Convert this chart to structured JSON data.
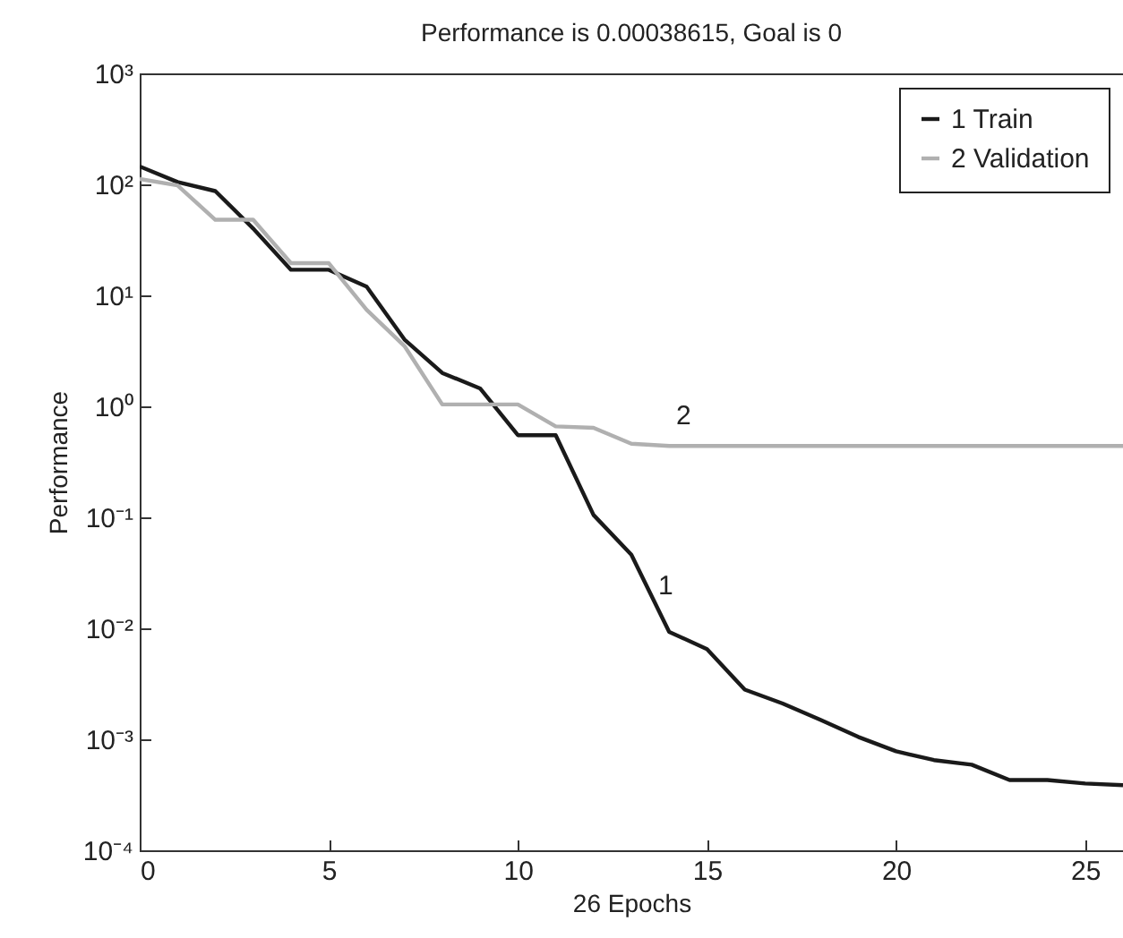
{
  "chart_data": {
    "type": "line",
    "title": "Performance is 0.00038615, Goal is 0",
    "xlabel": "26 Epochs",
    "ylabel": "Performance",
    "log": "y",
    "legend": "top right",
    "line_style": "solid",
    "marker": "none",
    "grid": false,
    "x": [
      0,
      1,
      2,
      3,
      4,
      5,
      6,
      7,
      8,
      9,
      10,
      11,
      12,
      13,
      14,
      15,
      16,
      17,
      18,
      19,
      20,
      21,
      22,
      23,
      24,
      25,
      26
    ],
    "series": [
      {
        "name": "1 Train",
        "color": "#1a1a1a",
        "values": [
          145,
          105,
          87,
          40,
          17,
          17,
          12,
          4,
          2.0,
          1.45,
          0.55,
          0.55,
          0.105,
          0.046,
          0.0093,
          0.0065,
          0.0028,
          0.0021,
          0.0015,
          0.00105,
          0.00078,
          0.00065,
          0.00059,
          0.00043,
          0.00043,
          0.0004,
          0.00038615
        ]
      },
      {
        "name": "2 Validation",
        "color": "#b0b0b0",
        "values": [
          112,
          98,
          48,
          48,
          19.5,
          19.5,
          7.4,
          3.5,
          1.04,
          1.04,
          1.04,
          0.66,
          0.64,
          0.46,
          0.44,
          0.44,
          0.44,
          0.44,
          0.44,
          0.44,
          0.44,
          0.44,
          0.44,
          0.44,
          0.44,
          0.44,
          0.44
        ]
      }
    ],
    "annotations": [
      "1",
      "2"
    ],
    "xlim": [
      0,
      26
    ],
    "xticks": [
      0,
      5,
      10,
      15,
      20,
      25
    ],
    "ylim": [
      0.0001,
      1000
    ],
    "yticks": [
      {
        "value": 0.0001,
        "label": "10⁻⁴"
      },
      {
        "value": 0.001,
        "label": "10⁻³"
      },
      {
        "value": 0.01,
        "label": "10⁻²"
      },
      {
        "value": 0.1,
        "label": "10⁻¹"
      },
      {
        "value": 1,
        "label": "10⁰"
      },
      {
        "value": 10,
        "label": "10¹"
      },
      {
        "value": 100,
        "label": "10²"
      },
      {
        "value": 1000,
        "label": "10³"
      }
    ]
  }
}
